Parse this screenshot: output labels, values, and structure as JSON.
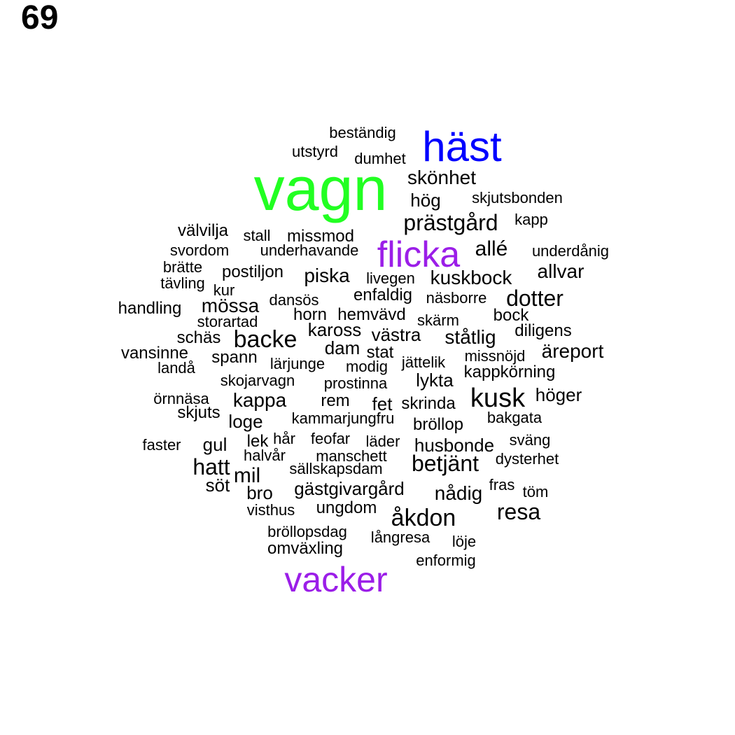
{
  "page_number": "69",
  "colors": {
    "black": "#000000",
    "green": "#22ff22",
    "blue": "#0000ff",
    "purple": "#9b1ee8"
  },
  "words": [
    {
      "text": "vagn",
      "color": "green"
    },
    {
      "text": "häst",
      "color": "blue"
    },
    {
      "text": "flicka",
      "color": "purple"
    },
    {
      "text": "vacker",
      "color": "purple"
    },
    {
      "text": "beständig"
    },
    {
      "text": "utstyrd"
    },
    {
      "text": "dumhet"
    },
    {
      "text": "skönhet"
    },
    {
      "text": "hög"
    },
    {
      "text": "skjutsbonden"
    },
    {
      "text": "prästgård"
    },
    {
      "text": "kapp"
    },
    {
      "text": "välvilja"
    },
    {
      "text": "stall"
    },
    {
      "text": "missmod"
    },
    {
      "text": "svordom"
    },
    {
      "text": "underhavande"
    },
    {
      "text": "allé"
    },
    {
      "text": "underdånig"
    },
    {
      "text": "brätte"
    },
    {
      "text": "postiljon"
    },
    {
      "text": "piska"
    },
    {
      "text": "livegen"
    },
    {
      "text": "kuskbock"
    },
    {
      "text": "allvar"
    },
    {
      "text": "tävling"
    },
    {
      "text": "kur"
    },
    {
      "text": "enfaldig"
    },
    {
      "text": "näsborre"
    },
    {
      "text": "dotter"
    },
    {
      "text": "dansös"
    },
    {
      "text": "handling"
    },
    {
      "text": "mössa"
    },
    {
      "text": "horn"
    },
    {
      "text": "hemvävd"
    },
    {
      "text": "skärm"
    },
    {
      "text": "bock"
    },
    {
      "text": "storartad"
    },
    {
      "text": "kaross"
    },
    {
      "text": "västra"
    },
    {
      "text": "ståtlig"
    },
    {
      "text": "diligens"
    },
    {
      "text": "schäs"
    },
    {
      "text": "backe"
    },
    {
      "text": "dam"
    },
    {
      "text": "stat"
    },
    {
      "text": "äreport"
    },
    {
      "text": "vansinne"
    },
    {
      "text": "spann"
    },
    {
      "text": "lärjunge"
    },
    {
      "text": "modig"
    },
    {
      "text": "jättelik"
    },
    {
      "text": "missnöjd"
    },
    {
      "text": "landå"
    },
    {
      "text": "kappkörning"
    },
    {
      "text": "skojarvagn"
    },
    {
      "text": "prostinna"
    },
    {
      "text": "lykta"
    },
    {
      "text": "örnnäsa"
    },
    {
      "text": "kappa"
    },
    {
      "text": "rem"
    },
    {
      "text": "fet"
    },
    {
      "text": "skrinda"
    },
    {
      "text": "kusk"
    },
    {
      "text": "höger"
    },
    {
      "text": "skjuts"
    },
    {
      "text": "loge"
    },
    {
      "text": "kammarjungfru"
    },
    {
      "text": "bröllop"
    },
    {
      "text": "bakgata"
    },
    {
      "text": "faster"
    },
    {
      "text": "gul"
    },
    {
      "text": "lek"
    },
    {
      "text": "hår"
    },
    {
      "text": "feofar"
    },
    {
      "text": "läder"
    },
    {
      "text": "husbonde"
    },
    {
      "text": "sväng"
    },
    {
      "text": "hatt"
    },
    {
      "text": "halvår"
    },
    {
      "text": "manschett"
    },
    {
      "text": "betjänt"
    },
    {
      "text": "dysterhet"
    },
    {
      "text": "mil"
    },
    {
      "text": "sällskapsdam"
    },
    {
      "text": "söt"
    },
    {
      "text": "bro"
    },
    {
      "text": "gästgivargård"
    },
    {
      "text": "nådig"
    },
    {
      "text": "fras"
    },
    {
      "text": "töm"
    },
    {
      "text": "visthus"
    },
    {
      "text": "ungdom"
    },
    {
      "text": "åkdon"
    },
    {
      "text": "resa"
    },
    {
      "text": "bröllopsdag"
    },
    {
      "text": "långresa"
    },
    {
      "text": "löje"
    },
    {
      "text": "omväxling"
    },
    {
      "text": "enformig"
    }
  ]
}
